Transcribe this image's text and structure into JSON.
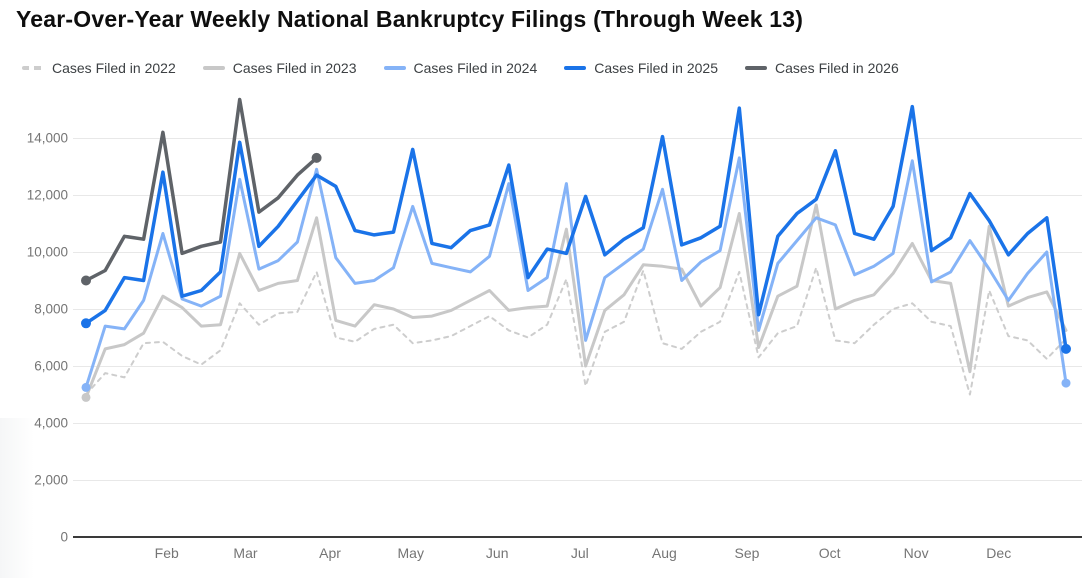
{
  "title": "Year-Over-Year Weekly National Bankruptcy Filings (Through Week 13)",
  "chart_data": {
    "type": "line",
    "title": "Year-Over-Year Weekly National Bankruptcy Filings (Through Week 13)",
    "x_unit": "week of year (1-52)",
    "xlabel": "",
    "ylabel": "",
    "ylim": [
      0,
      15500
    ],
    "grid": true,
    "legend_position": "top",
    "yticks": [
      {
        "value": 0,
        "label": "0"
      },
      {
        "value": 2000,
        "label": "2,000"
      },
      {
        "value": 4000,
        "label": "4,000"
      },
      {
        "value": 6000,
        "label": "6,000"
      },
      {
        "value": 8000,
        "label": "8,000"
      },
      {
        "value": 10000,
        "label": "10,000"
      },
      {
        "value": 12000,
        "label": "12,000"
      },
      {
        "value": 14000,
        "label": "14,000"
      }
    ],
    "month_labels": [
      {
        "label": "Feb",
        "week": 5.2
      },
      {
        "label": "Mar",
        "week": 9.3
      },
      {
        "label": "Apr",
        "week": 13.7
      },
      {
        "label": "May",
        "week": 17.9
      },
      {
        "label": "Jun",
        "week": 22.4
      },
      {
        "label": "Jul",
        "week": 26.7
      },
      {
        "label": "Aug",
        "week": 31.1
      },
      {
        "label": "Sep",
        "week": 35.4
      },
      {
        "label": "Oct",
        "week": 39.7
      },
      {
        "label": "Nov",
        "week": 44.2
      },
      {
        "label": "Dec",
        "week": 48.5
      }
    ],
    "series": [
      {
        "year": 2022,
        "name": "Cases Filed in 2022",
        "color": "#cdcdcd",
        "dash": true,
        "width": 2,
        "start_dot": false,
        "end_dot": false,
        "values": [
          5000,
          5750,
          5600,
          6800,
          6850,
          6350,
          6050,
          6550,
          8200,
          7450,
          7850,
          7900,
          9300,
          7000,
          6850,
          7300,
          7450,
          6800,
          6900,
          7050,
          7400,
          7750,
          7250,
          7000,
          7450,
          9050,
          5300,
          7200,
          7550,
          9350,
          6800,
          6600,
          7200,
          7550,
          9300,
          6300,
          7150,
          7400,
          9450,
          6900,
          6800,
          7450,
          8000,
          8200,
          7550,
          7400,
          5000,
          8650,
          7050,
          6900,
          6250,
          6950
        ]
      },
      {
        "year": 2023,
        "name": "Cases Filed in 2023",
        "color": "#c8c8c8",
        "dash": false,
        "width": 3,
        "start_dot": true,
        "end_dot": false,
        "values": [
          4900,
          6600,
          6750,
          7150,
          8450,
          8050,
          7400,
          7450,
          9950,
          8650,
          8900,
          9000,
          11200,
          7600,
          7400,
          8150,
          8000,
          7700,
          7750,
          7950,
          8300,
          8650,
          7950,
          8050,
          8100,
          10800,
          6000,
          7950,
          8500,
          9550,
          9500,
          9400,
          8100,
          8750,
          11350,
          6650,
          8450,
          8800,
          11650,
          8000,
          8300,
          8500,
          9250,
          10300,
          9000,
          8900,
          5800,
          10900,
          8100,
          8400,
          8600,
          7250
        ]
      },
      {
        "year": 2024,
        "name": "Cases Filed in 2024",
        "color": "#85b3f7",
        "dash": false,
        "width": 3,
        "start_dot": true,
        "end_dot": true,
        "values": [
          5250,
          7400,
          7300,
          8300,
          10650,
          8350,
          8100,
          8450,
          12550,
          9400,
          9700,
          10350,
          12900,
          9800,
          8900,
          9000,
          9450,
          11600,
          9600,
          9450,
          9300,
          9850,
          12400,
          8650,
          9100,
          12400,
          6900,
          9100,
          9600,
          10100,
          12200,
          9000,
          9650,
          10050,
          13300,
          7250,
          9600,
          10400,
          11200,
          10950,
          9200,
          9500,
          9950,
          13200,
          8950,
          9300,
          10400,
          9400,
          8300,
          9250,
          10000,
          5400
        ]
      },
      {
        "year": 2025,
        "name": "Cases Filed in 2025",
        "color": "#1a73e8",
        "dash": false,
        "width": 3.5,
        "start_dot": true,
        "end_dot": true,
        "values": [
          7500,
          7950,
          9100,
          9000,
          12800,
          8450,
          8650,
          9300,
          13850,
          10200,
          10900,
          11800,
          12700,
          12300,
          10750,
          10600,
          10700,
          13600,
          10300,
          10150,
          10750,
          10950,
          13050,
          9100,
          10100,
          9950,
          11950,
          9900,
          10450,
          10850,
          14050,
          10250,
          10500,
          10900,
          15050,
          7800,
          10550,
          11350,
          11850,
          13550,
          10650,
          10450,
          11600,
          15100,
          10050,
          10500,
          12050,
          11100,
          9900,
          10650,
          11200,
          6600
        ]
      },
      {
        "year": 2026,
        "name": "Cases Filed in 2026",
        "color": "#5f6368",
        "dash": false,
        "width": 3.5,
        "start_dot": true,
        "end_dot": true,
        "values": [
          9000,
          9350,
          10550,
          10450,
          14200,
          9950,
          10200,
          10350,
          15350,
          11400,
          11900,
          12700,
          13300
        ]
      }
    ]
  }
}
